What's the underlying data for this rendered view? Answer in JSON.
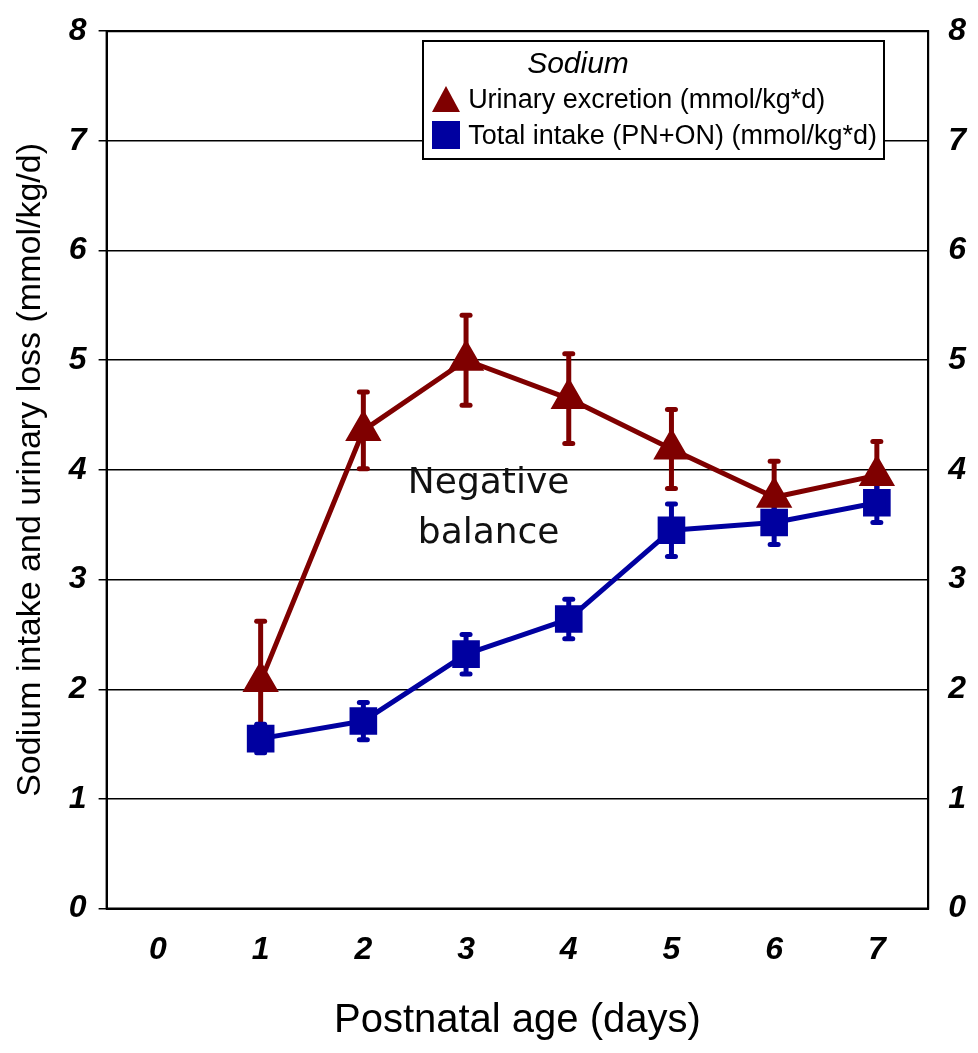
{
  "chart_data": {
    "type": "line",
    "xlabel": "Postnatal age (days)",
    "ylabel": "Sodium intake and urinary loss (mmol/kg/d)",
    "legend_title": "Sodium",
    "x": [
      1,
      2,
      3,
      4,
      5,
      6,
      7
    ],
    "series": [
      {
        "name": "Urinary excretion (mmol/kg*d)",
        "color": "#7f0000",
        "marker": "triangle",
        "values": [
          2.07,
          4.36,
          5.0,
          4.65,
          4.19,
          3.75,
          3.95
        ],
        "errors": [
          0.55,
          0.35,
          0.41,
          0.41,
          0.36,
          0.33,
          0.31
        ]
      },
      {
        "name": "Total intake (PN+ON) (mmol/kg*d)",
        "color": "#0000a0",
        "marker": "square",
        "values": [
          1.55,
          1.71,
          2.32,
          2.64,
          3.45,
          3.52,
          3.7
        ],
        "errors": [
          0.13,
          0.17,
          0.18,
          0.18,
          0.24,
          0.2,
          0.18
        ]
      }
    ],
    "xlim": [
      -0.5,
      7.5
    ],
    "xticks": [
      0,
      1,
      2,
      3,
      4,
      5,
      6,
      7
    ],
    "ylim": [
      0,
      8
    ],
    "yticks": [
      0,
      1,
      2,
      3,
      4,
      5,
      6,
      7,
      8
    ],
    "y2lim": [
      0,
      8
    ],
    "y2ticks": [
      0,
      1,
      2,
      3,
      4,
      5,
      6,
      7,
      8
    ],
    "grid": "y",
    "legend": "top right",
    "annotations": [
      "Negative balance"
    ]
  }
}
